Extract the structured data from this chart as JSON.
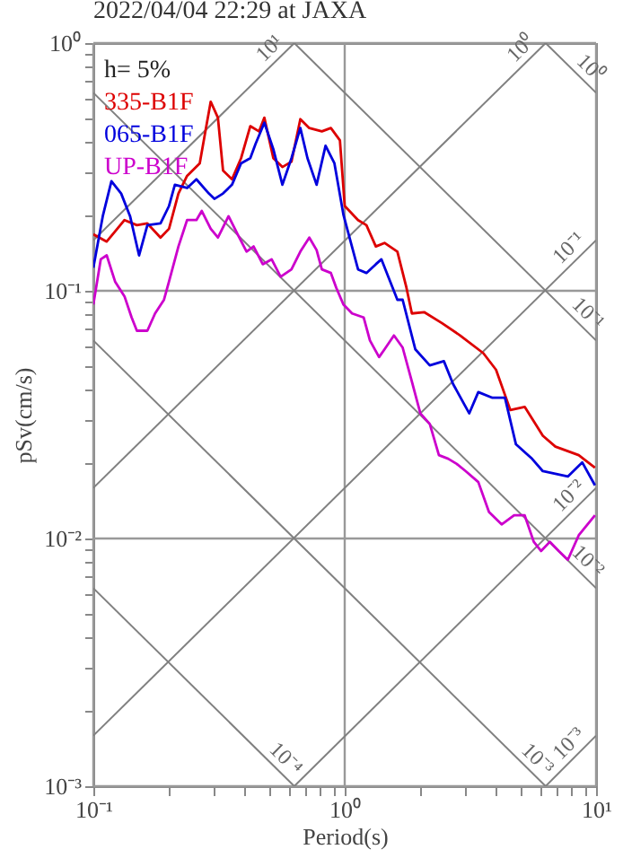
{
  "chart_data": {
    "type": "line",
    "title": "2022/04/04 22:29 at JAXA",
    "xlabel": "Period(s)",
    "ylabel": "pSv(cm/s)",
    "legend_title": "h= 5%",
    "legend": "top left",
    "log": "xy",
    "grid": true,
    "xlim": [
      0.1,
      10
    ],
    "ylim": [
      0.001,
      1
    ],
    "xticks": [
      {
        "value": 0.1,
        "label": "10⁻¹"
      },
      {
        "value": 0.2,
        "label": null
      },
      {
        "value": 0.3,
        "label": null
      },
      {
        "value": 0.4,
        "label": null
      },
      {
        "value": 0.5,
        "label": null
      },
      {
        "value": 0.6,
        "label": null
      },
      {
        "value": 0.7,
        "label": null
      },
      {
        "value": 0.8,
        "label": null
      },
      {
        "value": 0.9,
        "label": null
      },
      {
        "value": 1,
        "label": "10⁰"
      },
      {
        "value": 2,
        "label": null
      },
      {
        "value": 3,
        "label": null
      },
      {
        "value": 4,
        "label": null
      },
      {
        "value": 5,
        "label": null
      },
      {
        "value": 6,
        "label": null
      },
      {
        "value": 7,
        "label": null
      },
      {
        "value": 8,
        "label": null
      },
      {
        "value": 9,
        "label": null
      },
      {
        "value": 10,
        "label": "10¹"
      }
    ],
    "yticks": [
      {
        "value": 0.001,
        "label": "10⁻³"
      },
      {
        "value": 0.002,
        "label": null
      },
      {
        "value": 0.003,
        "label": null
      },
      {
        "value": 0.004,
        "label": null
      },
      {
        "value": 0.005,
        "label": null
      },
      {
        "value": 0.006,
        "label": null
      },
      {
        "value": 0.007,
        "label": null
      },
      {
        "value": 0.008,
        "label": null
      },
      {
        "value": 0.009,
        "label": null
      },
      {
        "value": 0.01,
        "label": "10⁻²"
      },
      {
        "value": 0.02,
        "label": null
      },
      {
        "value": 0.03,
        "label": null
      },
      {
        "value": 0.04,
        "label": null
      },
      {
        "value": 0.05,
        "label": null
      },
      {
        "value": 0.06,
        "label": null
      },
      {
        "value": 0.07,
        "label": null
      },
      {
        "value": 0.08,
        "label": null
      },
      {
        "value": 0.09,
        "label": null
      },
      {
        "value": 0.1,
        "label": "10⁻¹"
      },
      {
        "value": 0.2,
        "label": null
      },
      {
        "value": 0.3,
        "label": null
      },
      {
        "value": 0.4,
        "label": null
      },
      {
        "value": 0.5,
        "label": null
      },
      {
        "value": 0.6,
        "label": null
      },
      {
        "value": 0.7,
        "label": null
      },
      {
        "value": 0.8,
        "label": null
      },
      {
        "value": 0.9,
        "label": null
      },
      {
        "value": 1,
        "label": "10⁰"
      }
    ],
    "series": [
      {
        "name": "10¹",
        "type": "line",
        "color": "#808080",
        "x": [
          0.1,
          0.63
        ],
        "values": [
          0.16,
          1
        ]
      },
      {
        "name": "10⁰",
        "type": "line",
        "color": "#808080",
        "x": [
          0.1,
          6.3
        ],
        "values": [
          0.016,
          1
        ]
      },
      {
        "name": "10⁻¹",
        "type": "line",
        "color": "#808080",
        "x": [
          0.1,
          10
        ],
        "values": [
          0.0016,
          0.16
        ]
      },
      {
        "name": "10⁻²",
        "type": "line",
        "color": "#808080",
        "x": [
          0.63,
          10
        ],
        "values": [
          0.001,
          0.016
        ]
      },
      {
        "name": "10⁻³",
        "type": "line",
        "color": "#808080",
        "x": [
          6.3,
          10
        ],
        "values": [
          0.001,
          0.0016
        ]
      },
      {
        "name": "10⁰",
        "type": "line",
        "color": "#808080",
        "x": [
          6.3,
          10
        ],
        "values": [
          1,
          0.63
        ]
      },
      {
        "name": "10⁻¹",
        "type": "line",
        "color": "#808080",
        "x": [
          0.63,
          10
        ],
        "values": [
          1,
          0.063
        ]
      },
      {
        "name": "10⁻²",
        "type": "line",
        "color": "#808080",
        "x": [
          0.1,
          10
        ],
        "values": [
          0.63,
          0.0063
        ]
      },
      {
        "name": "10⁻³",
        "type": "line",
        "color": "#808080",
        "x": [
          0.1,
          6.3
        ],
        "values": [
          0.063,
          0.001
        ]
      },
      {
        "name": "10⁻⁴",
        "type": "line",
        "color": "#808080",
        "x": [
          0.1,
          0.63
        ],
        "values": [
          0.0063,
          0.001
        ]
      },
      {
        "name": "335-B1F",
        "color": "#dd0000",
        "x": [
          0.1,
          0.113,
          0.133,
          0.149,
          0.164,
          0.185,
          0.2,
          0.218,
          0.236,
          0.265,
          0.279,
          0.293,
          0.313,
          0.328,
          0.356,
          0.387,
          0.421,
          0.456,
          0.479,
          0.52,
          0.565,
          0.614,
          0.666,
          0.723,
          0.811,
          0.881,
          0.957,
          1.0,
          1.13,
          1.22,
          1.33,
          1.44,
          1.62,
          1.76,
          1.85,
          2.07,
          2.44,
          2.88,
          3.56,
          4.0,
          4.56,
          5.2,
          6.14,
          6.89,
          8.53,
          9.9
        ],
        "values": [
          0.169,
          0.158,
          0.193,
          0.184,
          0.187,
          0.164,
          0.178,
          0.247,
          0.291,
          0.327,
          0.44,
          0.58,
          0.5,
          0.306,
          0.282,
          0.343,
          0.462,
          0.44,
          0.5,
          0.343,
          0.316,
          0.332,
          0.493,
          0.454,
          0.44,
          0.454,
          0.405,
          0.22,
          0.193,
          0.184,
          0.151,
          0.156,
          0.144,
          0.103,
          0.081,
          0.082,
          0.074,
          0.066,
          0.056,
          0.048,
          0.033,
          0.034,
          0.026,
          0.0235,
          0.0217,
          0.0193
        ]
      },
      {
        "name": "065-B1F",
        "color": "#0000dd",
        "x": [
          0.1,
          0.109,
          0.118,
          0.129,
          0.14,
          0.152,
          0.164,
          0.185,
          0.2,
          0.211,
          0.236,
          0.257,
          0.288,
          0.303,
          0.328,
          0.356,
          0.387,
          0.421,
          0.442,
          0.479,
          0.52,
          0.565,
          0.614,
          0.666,
          0.711,
          0.773,
          0.839,
          0.91,
          0.988,
          1.13,
          1.22,
          1.33,
          1.4,
          1.49,
          1.62,
          1.7,
          1.91,
          2.18,
          2.48,
          2.7,
          3.13,
          3.4,
          3.87,
          4.34,
          4.8,
          5.56,
          6.14,
          7.72,
          8.81,
          9.9
        ],
        "values": [
          0.124,
          0.2,
          0.277,
          0.247,
          0.2,
          0.139,
          0.184,
          0.187,
          0.22,
          0.268,
          0.26,
          0.282,
          0.247,
          0.235,
          0.247,
          0.268,
          0.327,
          0.343,
          0.392,
          0.477,
          0.373,
          0.268,
          0.343,
          0.454,
          0.343,
          0.268,
          0.385,
          0.327,
          0.203,
          0.122,
          0.118,
          0.128,
          0.134,
          0.114,
          0.092,
          0.092,
          0.058,
          0.05,
          0.052,
          0.042,
          0.032,
          0.039,
          0.037,
          0.037,
          0.024,
          0.021,
          0.0187,
          0.0178,
          0.0203,
          0.0164
        ]
      },
      {
        "name": "UP-B1F",
        "color": "#cc00cc",
        "x": [
          0.1,
          0.107,
          0.113,
          0.122,
          0.133,
          0.142,
          0.149,
          0.164,
          0.176,
          0.191,
          0.2,
          0.218,
          0.236,
          0.257,
          0.27,
          0.293,
          0.313,
          0.345,
          0.375,
          0.407,
          0.434,
          0.472,
          0.512,
          0.556,
          0.614,
          0.666,
          0.723,
          0.773,
          0.811,
          0.881,
          0.925,
          0.988,
          1.07,
          1.19,
          1.26,
          1.37,
          1.44,
          1.57,
          1.7,
          1.85,
          2.0,
          2.18,
          2.37,
          2.58,
          2.79,
          3.03,
          3.4,
          3.75,
          4.21,
          4.72,
          5.2,
          5.65,
          6.04,
          6.55,
          7.11,
          7.72,
          8.53,
          9.9
        ],
        "values": [
          0.088,
          0.134,
          0.139,
          0.109,
          0.095,
          0.078,
          0.069,
          0.069,
          0.081,
          0.092,
          0.109,
          0.151,
          0.193,
          0.193,
          0.21,
          0.178,
          0.164,
          0.2,
          0.169,
          0.144,
          0.151,
          0.128,
          0.134,
          0.114,
          0.122,
          0.144,
          0.164,
          0.146,
          0.122,
          0.118,
          0.103,
          0.088,
          0.081,
          0.078,
          0.063,
          0.054,
          0.058,
          0.066,
          0.059,
          0.043,
          0.032,
          0.029,
          0.0217,
          0.021,
          0.02,
          0.0187,
          0.0169,
          0.0128,
          0.0114,
          0.0124,
          0.0124,
          0.0097,
          0.0089,
          0.0097,
          0.0089,
          0.0082,
          0.0103,
          0.0124
        ]
      }
    ]
  }
}
